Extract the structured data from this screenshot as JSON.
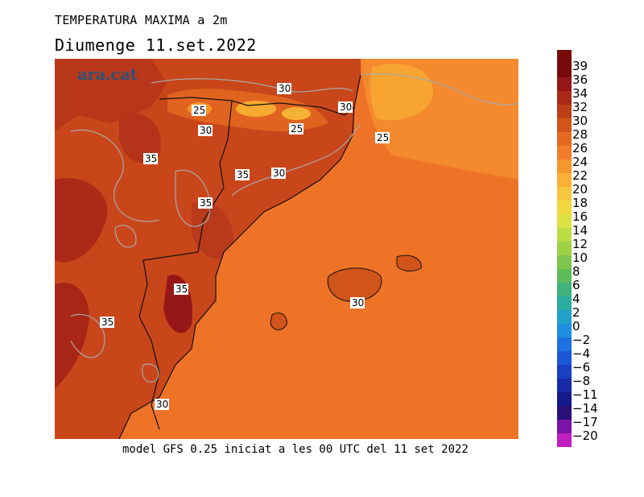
{
  "title": "TEMPERATURA MAXIMA a 2m",
  "subtitle": "Diumenge  11.set.2022",
  "footer": "model GFS 0.25 iniciat a les 00 UTC del 11 set 2022",
  "logo": "ara.cat",
  "legend": {
    "levels": [
      {
        "label": "39",
        "color": "#7a0a0a"
      },
      {
        "label": "36",
        "color": "#951717"
      },
      {
        "label": "34",
        "color": "#ab2a17"
      },
      {
        "label": "32",
        "color": "#bd3f17"
      },
      {
        "label": "30",
        "color": "#d1541a"
      },
      {
        "label": "28",
        "color": "#e36a1f"
      },
      {
        "label": "26",
        "color": "#f17d2a"
      },
      {
        "label": "24",
        "color": "#f6972e"
      },
      {
        "label": "22",
        "color": "#f9b236"
      },
      {
        "label": "20",
        "color": "#f6c63c"
      },
      {
        "label": "18",
        "color": "#f0d83f"
      },
      {
        "label": "16",
        "color": "#dde244"
      },
      {
        "label": "14",
        "color": "#bcdc44"
      },
      {
        "label": "12",
        "color": "#9fd147"
      },
      {
        "label": "10",
        "color": "#7fc54b"
      },
      {
        "label": "8",
        "color": "#5dbd5a"
      },
      {
        "label": "6",
        "color": "#3fb37c"
      },
      {
        "label": "4",
        "color": "#2aaea1"
      },
      {
        "label": "2",
        "color": "#22a2c8"
      },
      {
        "label": "0",
        "color": "#1e8ee0"
      },
      {
        "label": "−2",
        "color": "#1e72e0"
      },
      {
        "label": "−4",
        "color": "#1c57d6"
      },
      {
        "label": "−6",
        "color": "#1a3fc1"
      },
      {
        "label": "−8",
        "color": "#172aa8"
      },
      {
        "label": "−11",
        "color": "#141a8c"
      },
      {
        "label": "−14",
        "color": "#2a0f78"
      },
      {
        "label": "−17",
        "color": "#7a13a8"
      },
      {
        "label": "−20",
        "color": "#c11ec0"
      }
    ],
    "top_color": "#7a0a0a"
  },
  "contour_labels": [
    "30",
    "25",
    "30",
    "30",
    "25",
    "25",
    "35",
    "35",
    "30",
    "35",
    "35",
    "30",
    "35",
    "30"
  ],
  "colors": {
    "land_base": "#c9461b",
    "land_hot": "#ab2a17",
    "land_hotter": "#951717",
    "sea": "#ef7327",
    "sea_warm": "#f4892d",
    "cool_patch": "#f7a431",
    "contour": "#a8a8a8",
    "coast": "#111111"
  }
}
